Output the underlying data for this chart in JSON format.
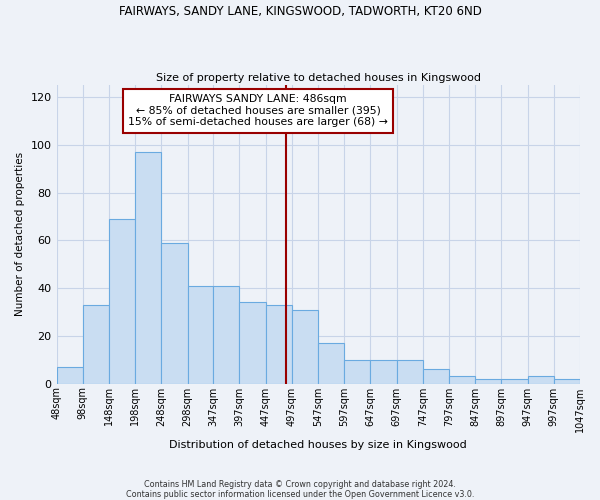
{
  "title": "FAIRWAYS, SANDY LANE, KINGSWOOD, TADWORTH, KT20 6ND",
  "subtitle": "Size of property relative to detached houses in Kingswood",
  "xlabel": "Distribution of detached houses by size in Kingswood",
  "ylabel": "Number of detached properties",
  "bar_heights": [
    7,
    33,
    69,
    97,
    59,
    41,
    41,
    34,
    33,
    31,
    17,
    10,
    10,
    10,
    6,
    3,
    2,
    2,
    3,
    2
  ],
  "bin_labels": [
    "48sqm",
    "98sqm",
    "148sqm",
    "198sqm",
    "248sqm",
    "298sqm",
    "347sqm",
    "397sqm",
    "447sqm",
    "497sqm",
    "547sqm",
    "597sqm",
    "647sqm",
    "697sqm",
    "747sqm",
    "797sqm",
    "847sqm",
    "897sqm",
    "947sqm",
    "997sqm",
    "1047sqm"
  ],
  "bin_edges": [
    48,
    98,
    148,
    198,
    248,
    298,
    347,
    397,
    447,
    497,
    547,
    597,
    647,
    697,
    747,
    797,
    847,
    897,
    947,
    997,
    1047
  ],
  "bar_color": "#c9ddf2",
  "bar_edge_color": "#6aaae0",
  "vline_x": 486,
  "vline_color": "#990000",
  "annotation_title": "FAIRWAYS SANDY LANE: 486sqm",
  "annotation_line2": "← 85% of detached houses are smaller (395)",
  "annotation_line3": "15% of semi-detached houses are larger (68) →",
  "ylim": [
    0,
    125
  ],
  "yticks": [
    0,
    20,
    40,
    60,
    80,
    100,
    120
  ],
  "grid_color": "#c8d4e8",
  "footer_line1": "Contains HM Land Registry data © Crown copyright and database right 2024.",
  "footer_line2": "Contains public sector information licensed under the Open Government Licence v3.0.",
  "bg_color": "#eef2f8"
}
